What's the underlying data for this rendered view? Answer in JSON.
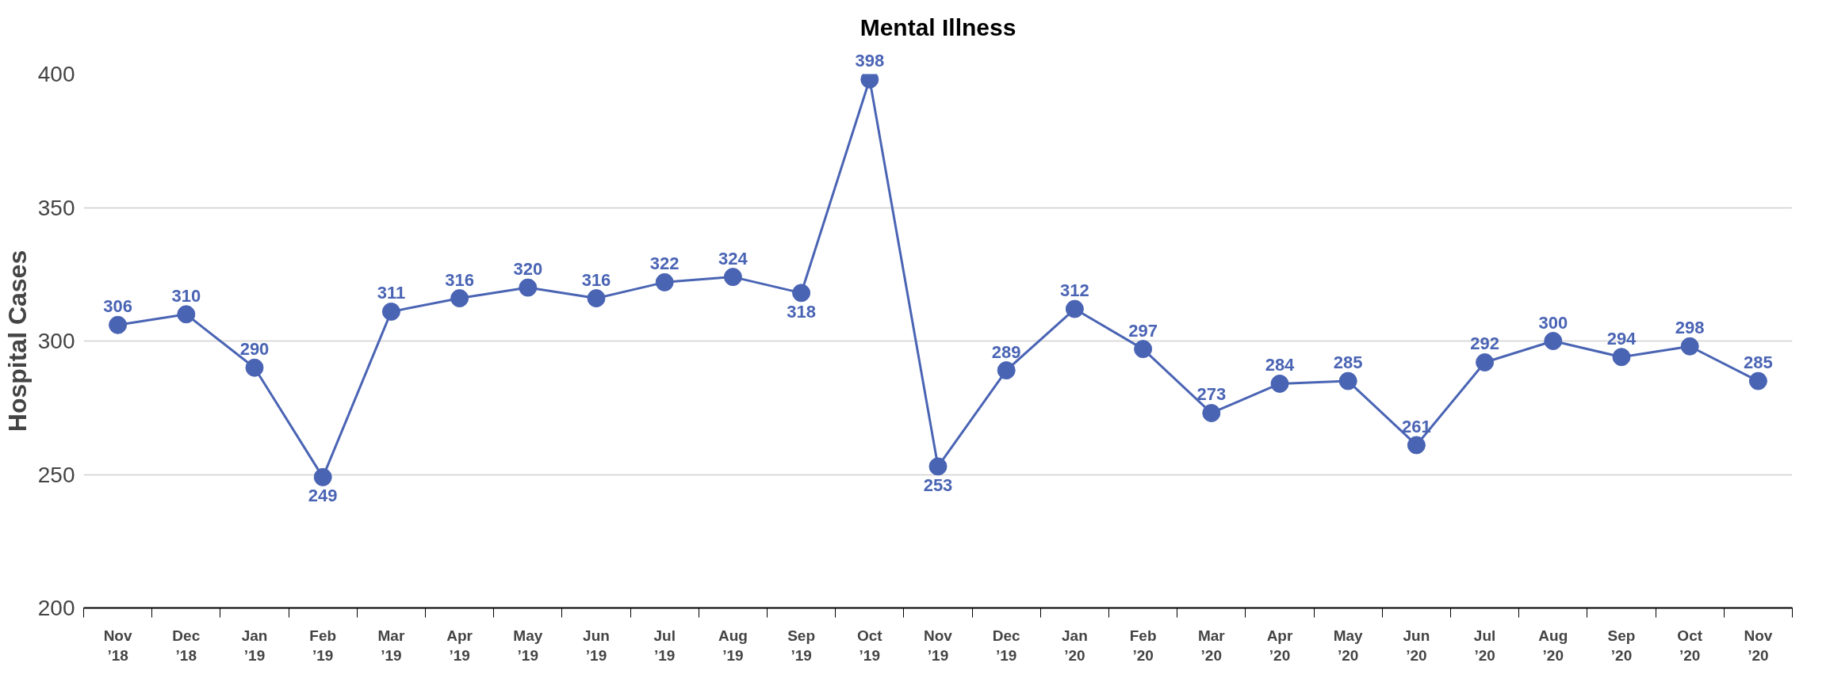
{
  "chart_data": {
    "type": "line",
    "title": "Mental Illness",
    "ylabel": "Hospital Cases",
    "categories": [
      "Nov\n’18",
      "Dec\n’18",
      "Jan\n’19",
      "Feb\n’19",
      "Mar\n’19",
      "Apr\n’19",
      "May\n’19",
      "Jun\n’19",
      "Jul\n’19",
      "Aug\n’19",
      "Sep\n’19",
      "Oct\n’19",
      "Nov\n’19",
      "Dec\n’19",
      "Jan\n’20",
      "Feb\n’20",
      "Mar\n’20",
      "Apr\n’20",
      "May\n’20",
      "Jun\n’20",
      "Jul\n’20",
      "Aug\n’20",
      "Sep\n’20",
      "Oct\n’20",
      "Nov\n’20"
    ],
    "series": [
      {
        "color": "#4a64b4",
        "values": [
          306,
          310,
          290,
          249,
          311,
          316,
          320,
          316,
          322,
          324,
          318,
          398,
          253,
          289,
          312,
          297,
          273,
          284,
          285,
          261,
          292,
          300,
          294,
          298,
          285
        ]
      }
    ],
    "ylim": [
      200,
      400
    ],
    "yticks": [
      200,
      250,
      300,
      350,
      400
    ],
    "grid": "y",
    "legend": false,
    "marker": "circle",
    "line_style": "solid",
    "data_labels": true
  }
}
